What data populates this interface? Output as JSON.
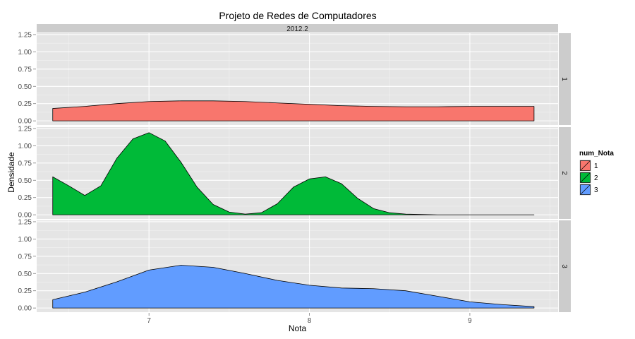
{
  "chart_data": {
    "type": "area",
    "title": "Projeto de Redes de Computadores",
    "column_strip": "2012.2",
    "xlabel": "Nota",
    "ylabel": "Densidade",
    "xlim": [
      6.3,
      9.55
    ],
    "ylim": [
      -0.06,
      1.27
    ],
    "x_ticks": [
      7,
      8,
      9
    ],
    "y_ticks": [
      0.0,
      0.25,
      0.5,
      0.75,
      1.0,
      1.25
    ],
    "y_tick_labels": [
      "0.00",
      "0.25",
      "0.50",
      "0.75",
      "1.00",
      "1.25"
    ],
    "grid": true,
    "legend": {
      "title": "num_Nota",
      "position": "right"
    },
    "series": [
      {
        "name": "1",
        "facet_label": "1",
        "color": "#F8766D",
        "x": [
          6.4,
          6.6,
          6.8,
          7.0,
          7.2,
          7.4,
          7.6,
          7.8,
          8.0,
          8.2,
          8.4,
          8.6,
          8.8,
          9.0,
          9.2,
          9.4
        ],
        "values": [
          0.18,
          0.21,
          0.25,
          0.28,
          0.29,
          0.29,
          0.28,
          0.26,
          0.24,
          0.22,
          0.21,
          0.205,
          0.205,
          0.21,
          0.21,
          0.21
        ]
      },
      {
        "name": "2",
        "facet_label": "2",
        "color": "#00BA38",
        "x": [
          6.4,
          6.5,
          6.6,
          6.7,
          6.8,
          6.9,
          7.0,
          7.1,
          7.2,
          7.3,
          7.4,
          7.5,
          7.6,
          7.7,
          7.8,
          7.9,
          8.0,
          8.1,
          8.2,
          8.3,
          8.4,
          8.5,
          8.6,
          8.8,
          9.0,
          9.2,
          9.4
        ],
        "values": [
          0.55,
          0.42,
          0.28,
          0.42,
          0.82,
          1.1,
          1.19,
          1.07,
          0.76,
          0.4,
          0.15,
          0.04,
          0.01,
          0.03,
          0.16,
          0.4,
          0.52,
          0.55,
          0.45,
          0.24,
          0.09,
          0.03,
          0.01,
          0.0,
          0.0,
          0.0,
          0.0
        ]
      },
      {
        "name": "3",
        "facet_label": "3",
        "color": "#619CFF",
        "x": [
          6.4,
          6.6,
          6.8,
          7.0,
          7.2,
          7.4,
          7.6,
          7.8,
          8.0,
          8.2,
          8.4,
          8.6,
          8.8,
          9.0,
          9.2,
          9.4
        ],
        "values": [
          0.12,
          0.23,
          0.38,
          0.55,
          0.62,
          0.59,
          0.5,
          0.4,
          0.33,
          0.29,
          0.28,
          0.25,
          0.17,
          0.09,
          0.05,
          0.02
        ]
      }
    ]
  }
}
